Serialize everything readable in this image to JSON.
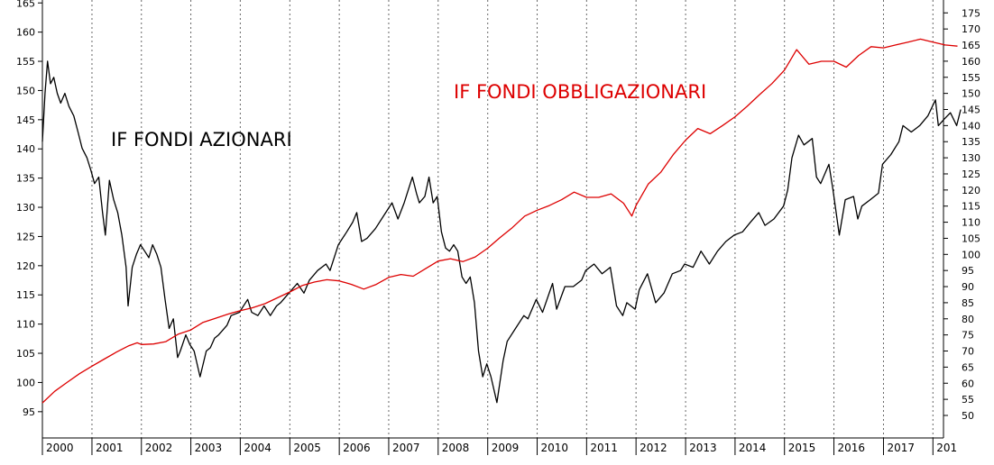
{
  "chart_data": {
    "type": "line",
    "x_ticks": [
      "2000",
      "2001",
      "2002",
      "2003",
      "2004",
      "2005",
      "2006",
      "2007",
      "2008",
      "2009",
      "2010",
      "2011",
      "2012",
      "2013",
      "2014",
      "2015",
      "2016",
      "2017",
      "201"
    ],
    "y_left_ticks": [
      95,
      100,
      105,
      110,
      115,
      120,
      125,
      130,
      135,
      140,
      145,
      150,
      155,
      160,
      165
    ],
    "y_right_ticks": [
      50,
      55,
      60,
      65,
      70,
      75,
      80,
      85,
      90,
      95,
      100,
      105,
      110,
      115,
      120,
      125,
      130,
      135,
      140,
      145,
      150,
      155,
      160,
      165,
      170,
      175
    ],
    "y_left_range": [
      90.5,
      165.5
    ],
    "y_right_range": [
      43.0,
      179.0
    ],
    "grid": "vertical dotted at year boundaries",
    "series": [
      {
        "name": "IF FONDI AZIONARI",
        "color": "#000000",
        "axis": "right",
        "points": [
          [
            "2000-01-01",
            135
          ],
          [
            "2000-01-20",
            150
          ],
          [
            "2000-02-08",
            160
          ],
          [
            "2000-03-01",
            153
          ],
          [
            "2000-03-25",
            155
          ],
          [
            "2000-04-20",
            150
          ],
          [
            "2000-05-15",
            147
          ],
          [
            "2000-06-15",
            150
          ],
          [
            "2000-07-15",
            146
          ],
          [
            "2000-08-20",
            143
          ],
          [
            "2000-09-20",
            138
          ],
          [
            "2000-10-20",
            133
          ],
          [
            "2000-11-25",
            130
          ],
          [
            "2000-12-25",
            126
          ],
          [
            "2001-01-20",
            122
          ],
          [
            "2001-02-20",
            124
          ],
          [
            "2001-03-20",
            113
          ],
          [
            "2001-04-10",
            106
          ],
          [
            "2001-05-10",
            123
          ],
          [
            "2001-06-10",
            117
          ],
          [
            "2001-07-10",
            113
          ],
          [
            "2001-08-10",
            106
          ],
          [
            "2001-09-10",
            96
          ],
          [
            "2001-09-25",
            84
          ],
          [
            "2001-10-25",
            96
          ],
          [
            "2001-11-25",
            100
          ],
          [
            "2001-12-25",
            103
          ],
          [
            "2002-01-25",
            101
          ],
          [
            "2002-02-25",
            99
          ],
          [
            "2002-03-25",
            103
          ],
          [
            "2002-04-25",
            100
          ],
          [
            "2002-05-25",
            96
          ],
          [
            "2002-06-25",
            86
          ],
          [
            "2002-07-25",
            77
          ],
          [
            "2002-08-25",
            80
          ],
          [
            "2002-09-25",
            68
          ],
          [
            "2002-10-15",
            70
          ],
          [
            "2002-11-25",
            75
          ],
          [
            "2002-12-25",
            72
          ],
          [
            "2003-01-25",
            70
          ],
          [
            "2003-03-10",
            62
          ],
          [
            "2003-04-25",
            70
          ],
          [
            "2003-05-25",
            71
          ],
          [
            "2003-06-25",
            74
          ],
          [
            "2003-07-25",
            75
          ],
          [
            "2003-09-25",
            78
          ],
          [
            "2003-10-25",
            81
          ],
          [
            "2003-12-25",
            82
          ],
          [
            "2004-02-25",
            86
          ],
          [
            "2004-03-25",
            82
          ],
          [
            "2004-05-10",
            81
          ],
          [
            "2004-06-25",
            84
          ],
          [
            "2004-08-10",
            81
          ],
          [
            "2004-09-25",
            84
          ],
          [
            "2004-10-25",
            85
          ],
          [
            "2004-12-25",
            88
          ],
          [
            "2005-02-25",
            91
          ],
          [
            "2005-04-15",
            88
          ],
          [
            "2005-05-25",
            92
          ],
          [
            "2005-07-25",
            95
          ],
          [
            "2005-09-25",
            97
          ],
          [
            "2005-10-25",
            95
          ],
          [
            "2005-12-25",
            103
          ],
          [
            "2006-02-25",
            107
          ],
          [
            "2006-04-10",
            110
          ],
          [
            "2006-05-10",
            113
          ],
          [
            "2006-06-15",
            104
          ],
          [
            "2006-07-25",
            105
          ],
          [
            "2006-09-25",
            108
          ],
          [
            "2006-11-25",
            112
          ],
          [
            "2007-01-25",
            116
          ],
          [
            "2007-03-10",
            111
          ],
          [
            "2007-04-25",
            116
          ],
          [
            "2007-05-25",
            120
          ],
          [
            "2007-06-25",
            124
          ],
          [
            "2007-07-25",
            119
          ],
          [
            "2007-08-15",
            116
          ],
          [
            "2007-09-25",
            118
          ],
          [
            "2007-10-25",
            124
          ],
          [
            "2007-11-25",
            116
          ],
          [
            "2007-12-25",
            118
          ],
          [
            "2008-01-25",
            107
          ],
          [
            "2008-02-25",
            102
          ],
          [
            "2008-03-25",
            101
          ],
          [
            "2008-04-25",
            103
          ],
          [
            "2008-05-25",
            101
          ],
          [
            "2008-06-25",
            93
          ],
          [
            "2008-07-25",
            91
          ],
          [
            "2008-08-25",
            93
          ],
          [
            "2008-09-25",
            85
          ],
          [
            "2008-10-25",
            70
          ],
          [
            "2008-11-25",
            62
          ],
          [
            "2008-12-25",
            66
          ],
          [
            "2009-01-25",
            62
          ],
          [
            "2009-03-10",
            54
          ],
          [
            "2009-04-25",
            67
          ],
          [
            "2009-05-25",
            73
          ],
          [
            "2009-07-25",
            77
          ],
          [
            "2009-09-25",
            81
          ],
          [
            "2009-10-25",
            80
          ],
          [
            "2009-12-25",
            86
          ],
          [
            "2010-02-10",
            82
          ],
          [
            "2010-04-25",
            91
          ],
          [
            "2010-05-25",
            83
          ],
          [
            "2010-07-25",
            90
          ],
          [
            "2010-09-25",
            90
          ],
          [
            "2010-11-25",
            92
          ],
          [
            "2010-12-25",
            95
          ],
          [
            "2011-02-25",
            97
          ],
          [
            "2011-04-25",
            94
          ],
          [
            "2011-06-25",
            96
          ],
          [
            "2011-08-10",
            84
          ],
          [
            "2011-09-25",
            81
          ],
          [
            "2011-10-25",
            85
          ],
          [
            "2011-12-25",
            83
          ],
          [
            "2012-01-25",
            89
          ],
          [
            "2012-03-25",
            94
          ],
          [
            "2012-05-25",
            85
          ],
          [
            "2012-07-25",
            88
          ],
          [
            "2012-09-25",
            94
          ],
          [
            "2012-11-25",
            95
          ],
          [
            "2012-12-25",
            97
          ],
          [
            "2013-02-25",
            96
          ],
          [
            "2013-04-25",
            101
          ],
          [
            "2013-06-25",
            97
          ],
          [
            "2013-08-25",
            101
          ],
          [
            "2013-10-25",
            104
          ],
          [
            "2013-12-25",
            106
          ],
          [
            "2014-02-25",
            107
          ],
          [
            "2014-04-25",
            110
          ],
          [
            "2014-06-25",
            113
          ],
          [
            "2014-08-10",
            109
          ],
          [
            "2014-10-15",
            111
          ],
          [
            "2014-12-25",
            115
          ],
          [
            "2015-01-25",
            120
          ],
          [
            "2015-02-25",
            130
          ],
          [
            "2015-04-15",
            137
          ],
          [
            "2015-05-25",
            134
          ],
          [
            "2015-07-25",
            136
          ],
          [
            "2015-08-25",
            124
          ],
          [
            "2015-09-25",
            122
          ],
          [
            "2015-11-25",
            128
          ],
          [
            "2015-12-25",
            120
          ],
          [
            "2016-02-10",
            106
          ],
          [
            "2016-03-25",
            117
          ],
          [
            "2016-05-25",
            118
          ],
          [
            "2016-06-25",
            111
          ],
          [
            "2016-07-25",
            115
          ],
          [
            "2016-09-25",
            117
          ],
          [
            "2016-11-25",
            119
          ],
          [
            "2016-12-25",
            128
          ],
          [
            "2017-02-25",
            131
          ],
          [
            "2017-04-25",
            135
          ],
          [
            "2017-05-25",
            140
          ],
          [
            "2017-07-25",
            138
          ],
          [
            "2017-09-25",
            140
          ],
          [
            "2017-11-25",
            143
          ],
          [
            "2018-01-20",
            148
          ],
          [
            "2018-02-10",
            140
          ],
          [
            "2018-03-25",
            142
          ],
          [
            "2018-05-10",
            144
          ],
          [
            "2018-06-25",
            140
          ],
          [
            "2018-07-25",
            145
          ]
        ]
      },
      {
        "name": "IF FONDI OBBLIGAZIONARI",
        "color": "#dd0000",
        "axis": "left",
        "points": [
          [
            "2000-01-01",
            96.5
          ],
          [
            "2000-04-01",
            98.5
          ],
          [
            "2000-07-01",
            100.0
          ],
          [
            "2000-10-01",
            101.5
          ],
          [
            "2001-01-01",
            102.8
          ],
          [
            "2001-04-01",
            104.0
          ],
          [
            "2001-07-01",
            105.2
          ],
          [
            "2001-10-01",
            106.3
          ],
          [
            "2001-12-01",
            106.8
          ],
          [
            "2002-01-01",
            106.5
          ],
          [
            "2002-04-01",
            106.6
          ],
          [
            "2002-07-01",
            107.0
          ],
          [
            "2002-10-01",
            108.3
          ],
          [
            "2003-01-01",
            109.0
          ],
          [
            "2003-04-01",
            110.3
          ],
          [
            "2003-07-01",
            111.0
          ],
          [
            "2003-10-01",
            111.7
          ],
          [
            "2004-01-01",
            112.3
          ],
          [
            "2004-04-01",
            112.8
          ],
          [
            "2004-07-01",
            113.5
          ],
          [
            "2004-10-01",
            114.5
          ],
          [
            "2005-01-01",
            115.5
          ],
          [
            "2005-04-01",
            116.6
          ],
          [
            "2005-07-01",
            117.2
          ],
          [
            "2005-10-01",
            117.6
          ],
          [
            "2006-01-01",
            117.4
          ],
          [
            "2006-04-01",
            116.8
          ],
          [
            "2006-07-01",
            116.0
          ],
          [
            "2006-10-01",
            116.8
          ],
          [
            "2007-01-01",
            118.0
          ],
          [
            "2007-04-01",
            118.5
          ],
          [
            "2007-07-01",
            118.2
          ],
          [
            "2007-10-01",
            119.5
          ],
          [
            "2008-01-01",
            120.8
          ],
          [
            "2008-04-01",
            121.2
          ],
          [
            "2008-07-01",
            120.7
          ],
          [
            "2008-10-01",
            121.5
          ],
          [
            "2009-01-01",
            123.0
          ],
          [
            "2009-04-01",
            124.8
          ],
          [
            "2009-07-01",
            126.5
          ],
          [
            "2009-10-01",
            128.5
          ],
          [
            "2010-01-01",
            129.5
          ],
          [
            "2010-04-01",
            130.3
          ],
          [
            "2010-07-01",
            131.3
          ],
          [
            "2010-10-01",
            132.6
          ],
          [
            "2011-01-01",
            131.7
          ],
          [
            "2011-04-01",
            131.7
          ],
          [
            "2011-07-01",
            132.3
          ],
          [
            "2011-10-01",
            130.7
          ],
          [
            "2011-12-01",
            128.5
          ],
          [
            "2012-01-01",
            130.3
          ],
          [
            "2012-04-01",
            134.0
          ],
          [
            "2012-07-01",
            136.0
          ],
          [
            "2012-10-01",
            139.0
          ],
          [
            "2013-01-01",
            141.5
          ],
          [
            "2013-04-01",
            143.5
          ],
          [
            "2013-07-01",
            142.6
          ],
          [
            "2013-10-01",
            144.0
          ],
          [
            "2014-01-01",
            145.5
          ],
          [
            "2014-04-01",
            147.3
          ],
          [
            "2014-07-01",
            149.3
          ],
          [
            "2014-10-01",
            151.2
          ],
          [
            "2015-01-01",
            153.5
          ],
          [
            "2015-04-01",
            157.0
          ],
          [
            "2015-07-01",
            154.5
          ],
          [
            "2015-10-01",
            155.0
          ],
          [
            "2016-01-01",
            155.0
          ],
          [
            "2016-04-01",
            154.0
          ],
          [
            "2016-07-01",
            156.0
          ],
          [
            "2016-10-01",
            157.5
          ],
          [
            "2017-01-01",
            157.3
          ],
          [
            "2017-04-01",
            157.8
          ],
          [
            "2017-07-01",
            158.3
          ],
          [
            "2017-10-01",
            158.8
          ],
          [
            "2018-01-01",
            158.3
          ],
          [
            "2018-04-01",
            157.8
          ],
          [
            "2018-07-01",
            157.6
          ]
        ]
      }
    ]
  }
}
